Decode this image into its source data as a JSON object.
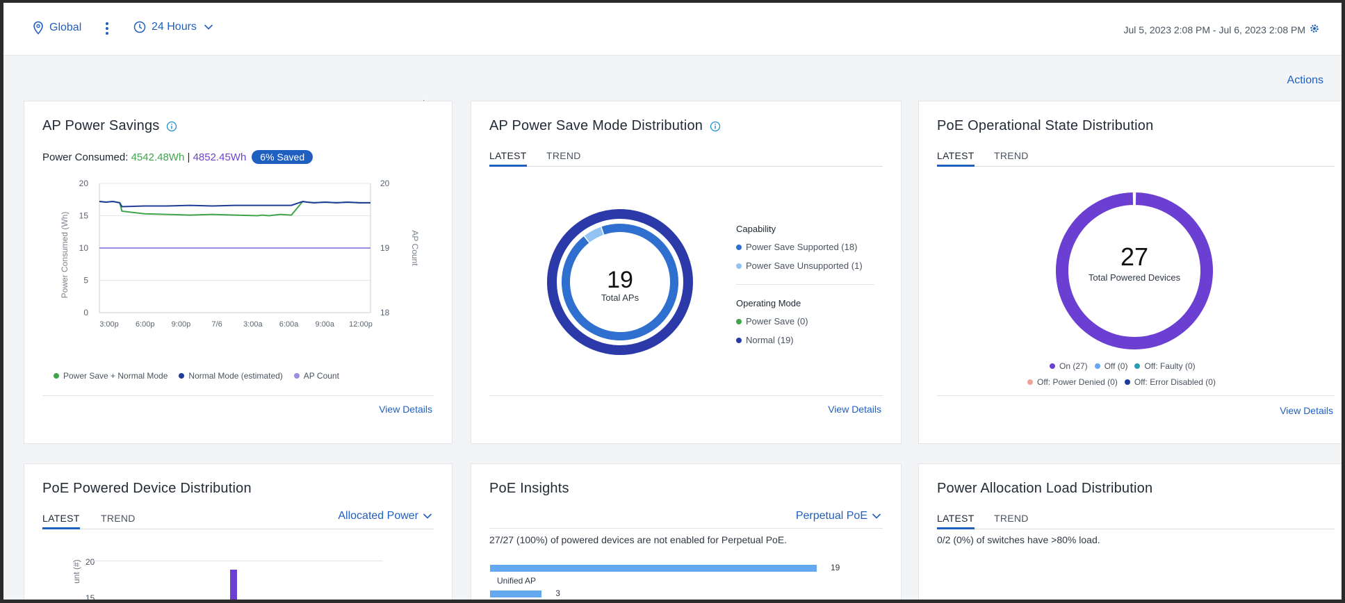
{
  "topbar": {
    "location": "Global",
    "time_window": "24 Hours",
    "time_range": "Jul 5, 2023 2:08 PM - Jul 6, 2023 2:08 PM"
  },
  "actions_label": "Actions",
  "ap_power_savings": {
    "title": "AP Power Savings",
    "consumed_label": "Power Consumed:",
    "consumed_value": "4542.48Wh",
    "separator": "|",
    "estimated_value": "4852.45Wh",
    "saved_badge": "6% Saved",
    "view_details": "View Details",
    "chart_data": {
      "type": "line",
      "ylabel": "Power Consumed (Wh)",
      "y2label": "AP Count",
      "ylim": [
        0,
        20
      ],
      "y2lim": [
        18,
        20
      ],
      "y_ticks": [
        "0",
        "5",
        "10",
        "15",
        "20"
      ],
      "y2_ticks": [
        "18",
        "19",
        "20"
      ],
      "x_ticks": [
        "3:00p",
        "6:00p",
        "9:00p",
        "7/6",
        "3:00a",
        "6:00a",
        "9:00a",
        "12:00p"
      ],
      "series": [
        {
          "name": "Power Save + Normal Mode",
          "color": "#3ea54a",
          "x": [
            0,
            0.3,
            0.6,
            0.9,
            1.0,
            2,
            3,
            4,
            5,
            6,
            7,
            7.2,
            7.5,
            8,
            8.5,
            9.0,
            9.2,
            9.5,
            10,
            10.5,
            11,
            11.5,
            12
          ],
          "values": [
            17.2,
            17.1,
            17.2,
            17.0,
            15.7,
            15.3,
            15.2,
            15.1,
            15.2,
            15.1,
            15.0,
            15.1,
            15.0,
            15.2,
            15.1,
            17.2,
            17.1,
            17.0,
            17.1,
            17.0,
            17.1,
            17.0,
            17.0
          ]
        },
        {
          "name": "Normal Mode (estimated)",
          "color": "#1f3c99",
          "x": [
            0,
            0.3,
            0.6,
            0.9,
            1.0,
            2,
            3,
            4,
            5,
            6,
            7,
            7.5,
            8,
            8.5,
            9.0,
            9.2,
            9.5,
            10,
            10.5,
            11,
            11.5,
            12
          ],
          "values": [
            17.2,
            17.1,
            17.2,
            17.0,
            16.4,
            16.5,
            16.5,
            16.6,
            16.5,
            16.6,
            16.6,
            16.6,
            16.6,
            16.6,
            17.2,
            17.1,
            17.0,
            17.1,
            17.0,
            17.1,
            17.0,
            17.0
          ]
        },
        {
          "name": "AP Count",
          "color": "#9c8ce0",
          "axis": "right",
          "x": [
            0,
            12
          ],
          "values": [
            19,
            19
          ]
        }
      ]
    }
  },
  "ap_power_save_mode": {
    "title": "AP Power Save Mode Distribution",
    "tabs": [
      "LATEST",
      "TREND"
    ],
    "center_value": "19",
    "center_label": "Total APs",
    "capability_head": "Capability",
    "capability": [
      {
        "label": "Power Save Supported (18)",
        "color": "#2f6fd0",
        "value": 18
      },
      {
        "label": "Power Save Unsupported (1)",
        "color": "#93c3f2",
        "value": 1
      }
    ],
    "mode_head": "Operating Mode",
    "modes": [
      {
        "label": "Power Save (0)",
        "color": "#3ea54a",
        "value": 0
      },
      {
        "label": "Normal (19)",
        "color": "#2b3aa8",
        "value": 19
      }
    ],
    "view_details": "View Details"
  },
  "poe_operational_state": {
    "title": "PoE Operational State Distribution",
    "tabs": [
      "LATEST",
      "TREND"
    ],
    "center_value": "27",
    "center_label": "Total Powered Devices",
    "legend": [
      {
        "label": "On (27)",
        "color": "#6b3fd1",
        "value": 27
      },
      {
        "label": "Off (0)",
        "color": "#64a8ef",
        "value": 0
      },
      {
        "label": "Off: Faulty (0)",
        "color": "#2a9bb0",
        "value": 0
      },
      {
        "label": "Off: Power Denied (0)",
        "color": "#f0a39a",
        "value": 0
      },
      {
        "label": "Off: Error Disabled (0)",
        "color": "#1f3c99",
        "value": 0
      }
    ],
    "view_details": "View Details"
  },
  "poe_powered_device": {
    "title": "PoE Powered Device Distribution",
    "tabs": [
      "LATEST",
      "TREND"
    ],
    "dropdown": "Allocated Power",
    "y_ticks": [
      "20",
      "15"
    ],
    "ylabel": "unt (#)"
  },
  "poe_insights": {
    "title": "PoE Insights",
    "dropdown": "Perpetual PoE",
    "summary": "27/27 (100%) of powered devices are not enabled for Perpetual PoE.",
    "chart_data": {
      "type": "bar",
      "categories": [
        "Unified AP",
        ""
      ],
      "values": [
        19,
        3
      ]
    }
  },
  "power_allocation_load": {
    "title": "Power Allocation Load Distribution",
    "tabs": [
      "LATEST",
      "TREND"
    ],
    "summary": "0/2 (0%) of switches have >80% load."
  },
  "colors": {
    "accent": "#1f5fbf",
    "green": "#3ea54a",
    "purple": "#6b44c9"
  }
}
